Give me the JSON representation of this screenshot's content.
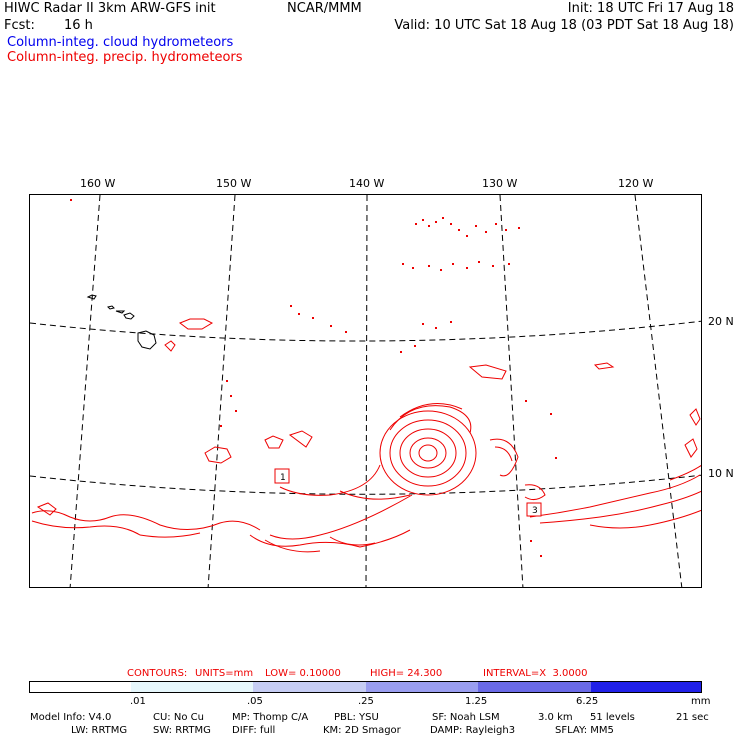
{
  "header": {
    "title_left": "HIWC Radar II 3km ARW-GFS init",
    "org": "NCAR/MMM",
    "init": "Init: 18 UTC Fri 17 Aug 18",
    "fcst_label": "Fcst:",
    "fcst_value": "16 h",
    "valid": "Valid: 10 UTC Sat 18 Aug 18 (03 PDT Sat 18 Aug 18)",
    "field_cloud": "Column-integ. cloud hydrometeors",
    "field_precip": "Column-integ. precip. hydrometeors"
  },
  "map": {
    "lon_labels": [
      "160 W",
      "150 W",
      "140 W",
      "130 W",
      "120 W"
    ],
    "lat_labels": [
      "20 N",
      "10 N"
    ],
    "box_labels": [
      "1",
      "3"
    ],
    "colors": {
      "coast": "#000000",
      "grid": "#000000",
      "precip": "#ee0000"
    }
  },
  "contour_info": {
    "contours_label": "CONTOURS:",
    "units": "UNITS=mm",
    "low": "LOW= 0.10000",
    "high": "HIGH= 24.300",
    "interval": "INTERVAL=X  3.0000"
  },
  "colorbar": {
    "ticks": [
      ".01",
      ".05",
      ".25",
      "1.25",
      "6.25"
    ],
    "unit": "mm",
    "colors": [
      "#ffffff",
      "#e6f7fc",
      "#c6cdf4",
      "#9a9ef0",
      "#6a6ae6",
      "#2020e8"
    ]
  },
  "footer": {
    "line1": [
      "Model Info: V4.0",
      "CU: No Cu",
      "MP: Thomp C/A",
      "PBL: YSU",
      "SF: Noah LSM",
      "3.0 km",
      "51 levels",
      "21 sec"
    ],
    "line2": [
      "LW: RRTMG",
      "SW: RRTMG",
      "DIFF: full",
      "KM: 2D Smagor",
      "DAMP: Rayleigh3",
      "SFLAY: MM5"
    ]
  }
}
